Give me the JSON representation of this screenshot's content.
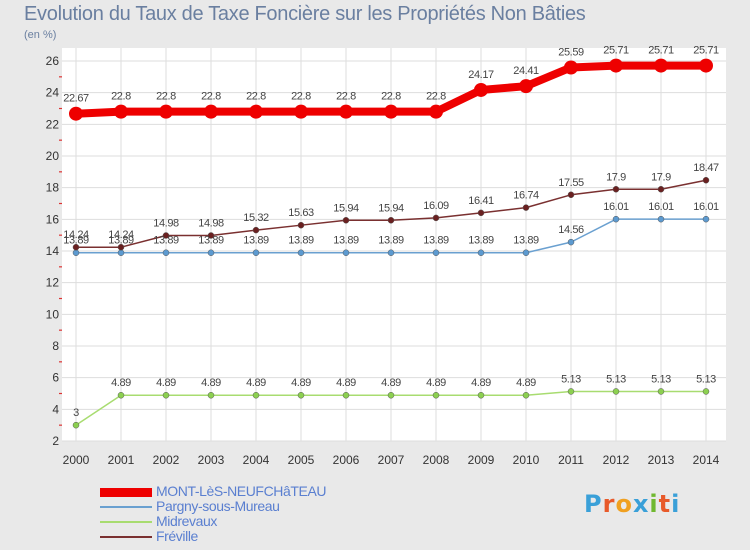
{
  "title": "Evolution du Taux de Taxe Foncière sur les Propriétés Non Bâties",
  "unit_label": "(en %)",
  "logo": {
    "text": "Proxiti",
    "letter_colors": [
      "#3aa0d8",
      "#e85a2a",
      "#f0a020",
      "#3aa0d8",
      "#70b830",
      "#e85a2a",
      "#3aa0d8"
    ]
  },
  "colors": {
    "background": "#e9e9e9",
    "plot_background": "#ffffff",
    "grid": "#dddddd",
    "axis_text": "#333333",
    "value_text": "#444444",
    "legend_text": "#5a7fd0"
  },
  "chart_data": {
    "type": "line",
    "x": [
      2000,
      2001,
      2002,
      2003,
      2004,
      2005,
      2006,
      2007,
      2008,
      2009,
      2010,
      2011,
      2012,
      2013,
      2014
    ],
    "ylim": [
      2,
      26
    ],
    "yticks": [
      2,
      4,
      6,
      8,
      10,
      12,
      14,
      16,
      18,
      20,
      22,
      24,
      26
    ],
    "grid": true,
    "legend_position": "bottom-left",
    "series": [
      {
        "name": "MONT-LèS-NEUFCHâTEAU",
        "color": "#ee0000",
        "marker_fill": "#ee0000",
        "width": 8,
        "marker_r": 7,
        "values": [
          22.67,
          22.8,
          22.8,
          22.8,
          22.8,
          22.8,
          22.8,
          22.8,
          22.8,
          24.17,
          24.41,
          25.59,
          25.71,
          25.71,
          25.71
        ],
        "labels": [
          "22.67",
          "22.8",
          "22.8",
          "22.8",
          "22.8",
          "22.8",
          "22.8",
          "22.8",
          "22.8",
          "24.17",
          "24.41",
          "25.59",
          "25.71",
          "25.71",
          "25.71"
        ]
      },
      {
        "name": "Pargny-sous-Mureau",
        "color": "#6aa0d0",
        "marker_fill": "#5c9ad0",
        "width": 1.5,
        "marker_r": 3,
        "values": [
          13.89,
          13.89,
          13.89,
          13.89,
          13.89,
          13.89,
          13.89,
          13.89,
          13.89,
          13.89,
          13.89,
          14.56,
          16.01,
          16.01,
          16.01
        ],
        "labels": [
          "13.89",
          "13.89",
          "13.89",
          "13.89",
          "13.89",
          "13.89",
          "13.89",
          "13.89",
          "13.89",
          "13.89",
          "13.89",
          "14.56",
          "16.01",
          "16.01",
          "16.01"
        ]
      },
      {
        "name": "Midrevaux",
        "color": "#a8dc70",
        "marker_fill": "#8cd050",
        "width": 1.5,
        "marker_r": 3,
        "values": [
          3,
          4.89,
          4.89,
          4.89,
          4.89,
          4.89,
          4.89,
          4.89,
          4.89,
          4.89,
          4.89,
          5.13,
          5.13,
          5.13,
          5.13
        ],
        "labels": [
          "3",
          "4.89",
          "4.89",
          "4.89",
          "4.89",
          "4.89",
          "4.89",
          "4.89",
          "4.89",
          "4.89",
          "4.89",
          "5.13",
          "5.13",
          "5.13",
          "5.13"
        ]
      },
      {
        "name": "Fréville",
        "color": "#7a3030",
        "marker_fill": "#6a2020",
        "width": 1.5,
        "marker_r": 3,
        "values": [
          14.24,
          14.24,
          14.98,
          14.98,
          15.32,
          15.63,
          15.94,
          15.94,
          16.09,
          16.41,
          16.74,
          17.55,
          17.9,
          17.9,
          18.47
        ],
        "labels": [
          "14.24",
          "14.24",
          "14.98",
          "14.98",
          "15.32",
          "15.63",
          "15.94",
          "15.94",
          "16.09",
          "16.41",
          "16.74",
          "17.55",
          "17.9",
          "17.9",
          "18.47"
        ]
      }
    ]
  }
}
